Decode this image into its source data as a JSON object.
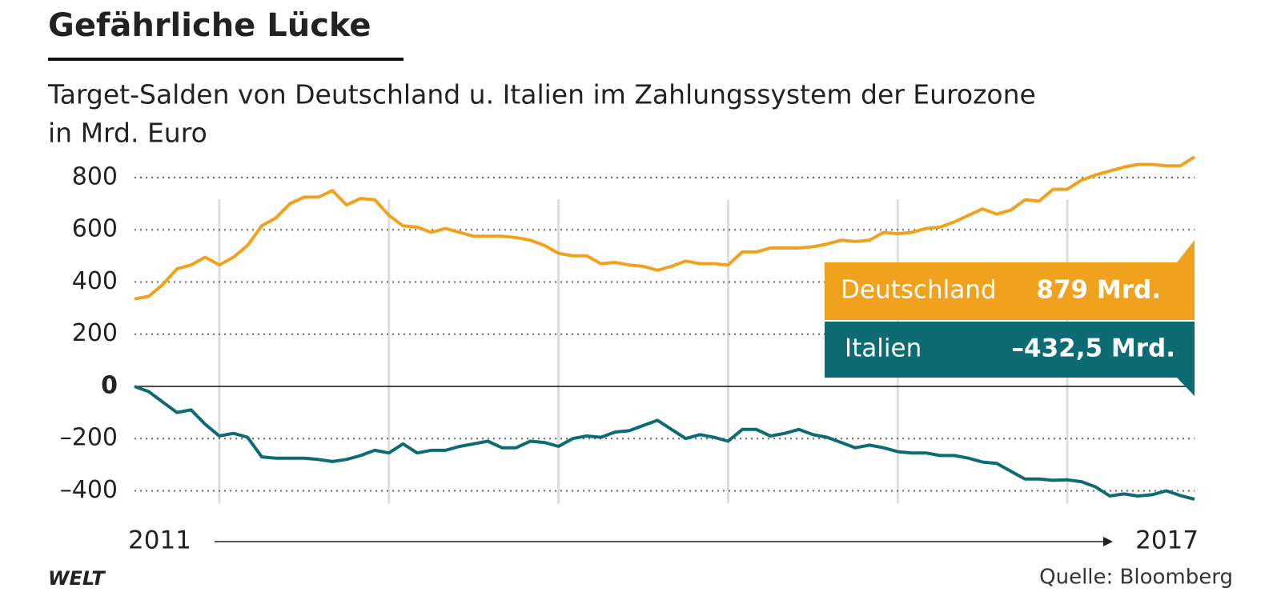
{
  "chart_data": {
    "type": "line",
    "title": "Gefährliche Lücke",
    "subtitle": [
      "Target-Salden von Deutschland u. Italien im Zahlungssystem der Eurozone",
      "in Mrd. Euro"
    ],
    "x_start_label": "2011",
    "x_end_label": "2017",
    "categories": [
      null,
      null,
      null,
      null,
      null,
      null,
      null,
      null,
      null,
      null,
      null,
      null,
      null,
      null,
      null,
      null,
      null,
      null,
      null,
      null,
      null,
      null,
      null,
      null,
      null,
      null,
      null,
      null,
      null,
      null,
      null,
      null,
      null,
      null,
      null,
      null,
      null,
      null,
      null,
      null,
      null,
      null,
      null,
      null,
      null,
      null,
      null,
      null,
      null,
      null,
      null,
      null,
      null,
      null,
      null,
      null,
      null,
      null,
      null,
      null,
      null,
      null,
      null,
      null,
      null,
      null,
      null,
      null,
      null,
      null,
      null,
      null,
      null,
      null,
      null,
      null
    ],
    "series": [
      {
        "name": "Deutschland",
        "color": "#f0a21e",
        "end_label": "879 Mrd.",
        "values": [
          335,
          345,
          390,
          450,
          465,
          495,
          465,
          495,
          540,
          615,
          645,
          700,
          725,
          725,
          750,
          695,
          720,
          715,
          655,
          615,
          610,
          590,
          605,
          590,
          575,
          575,
          575,
          570,
          560,
          540,
          510,
          500,
          500,
          470,
          475,
          465,
          460,
          445,
          460,
          480,
          470,
          470,
          465,
          515,
          515,
          530,
          530,
          530,
          535,
          545,
          560,
          555,
          560,
          590,
          585,
          590,
          605,
          610,
          630,
          655,
          680,
          660,
          675,
          715,
          710,
          755,
          755,
          790,
          810,
          825,
          840,
          850,
          850,
          845,
          845,
          879
        ]
      },
      {
        "name": "Italien",
        "color": "#0d6b73",
        "end_label": "–432,5 Mrd.",
        "values": [
          0,
          -20,
          -60,
          -100,
          -90,
          -145,
          -190,
          -180,
          -195,
          -270,
          -275,
          -275,
          -275,
          -280,
          -288,
          -280,
          -265,
          -245,
          -255,
          -220,
          -255,
          -245,
          -245,
          -230,
          -220,
          -210,
          -235,
          -235,
          -210,
          -215,
          -230,
          -200,
          -190,
          -195,
          -175,
          -170,
          -150,
          -130,
          -165,
          -200,
          -185,
          -195,
          -210,
          -165,
          -165,
          -190,
          -180,
          -165,
          -185,
          -195,
          -215,
          -235,
          -225,
          -235,
          -250,
          -255,
          -255,
          -265,
          -265,
          -275,
          -290,
          -295,
          -325,
          -355,
          -355,
          -360,
          -358,
          -365,
          -385,
          -420,
          -412,
          -420,
          -415,
          -400,
          -418,
          -432.5
        ]
      }
    ],
    "ylim": [
      -480,
      900
    ],
    "yticks": [
      800,
      600,
      400,
      200,
      0,
      {
        "value": -200,
        "label": "–200"
      },
      {
        "value": -400,
        "label": "–400"
      }
    ],
    "grid": true,
    "source": "Quelle: Bloomberg",
    "logo": "WELT"
  }
}
